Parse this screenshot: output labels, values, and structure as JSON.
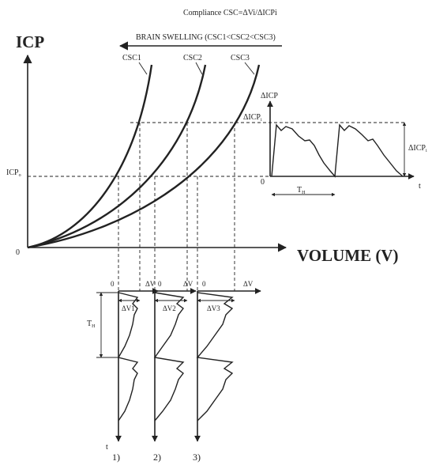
{
  "compliance_formula": "Compliance CSC=ΔVi/ΔICPi",
  "brain_swelling": "BRAIN SWELLING  (CSC1<CSC2<CSC3)",
  "axes": {
    "y_label": "ICP",
    "x_label": "VOLUME (V)",
    "origin": "0",
    "icp_o": "ICP",
    "icp_o_sub": "o"
  },
  "curves": [
    "CSC1",
    "CSC2",
    "CSC3"
  ],
  "pulse_panel": {
    "y_label": "ΔICP",
    "peak_label": "ΔICP",
    "peak_sub": "i",
    "amplitude_label": "ΔICP",
    "amplitude_sub": "i",
    "origin": "0",
    "t_label": "t",
    "period_label": "T",
    "period_sub": "H"
  },
  "volume_panels": [
    {
      "origin": "0",
      "dv": "ΔV",
      "dv_label": "ΔV1",
      "caption": "1)"
    },
    {
      "origin": "0",
      "dv": "ΔV",
      "dv_label": "ΔV2",
      "caption": "2)"
    },
    {
      "origin": "0",
      "dv": "ΔV",
      "dv_label": "ΔV3",
      "caption": "3)"
    }
  ],
  "volume_t_label": "t",
  "volume_period_label": "T",
  "volume_period_sub": "H"
}
